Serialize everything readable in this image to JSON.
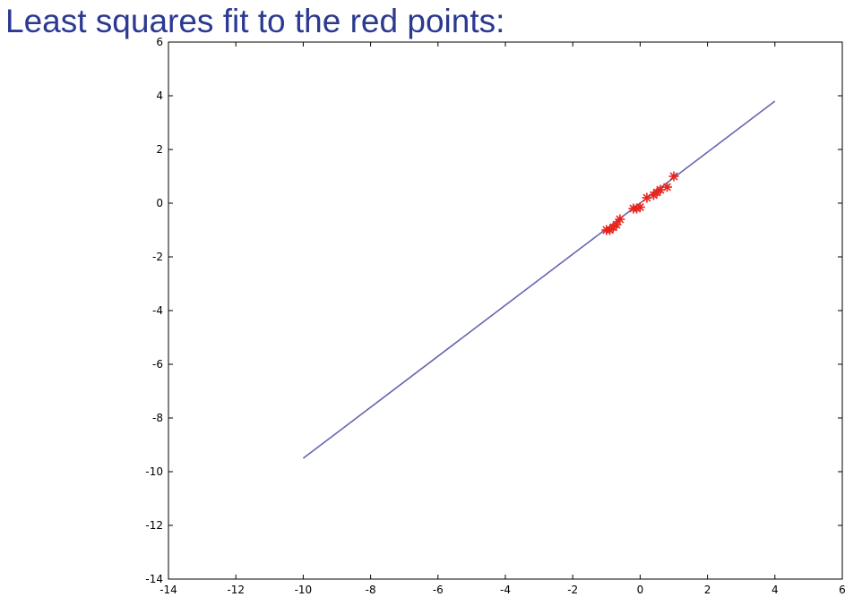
{
  "slide": {
    "title": "Least squares fit to the red points:"
  },
  "chart_data": {
    "type": "scatter",
    "title": "",
    "xlabel": "",
    "ylabel": "",
    "xlim": [
      -14,
      6
    ],
    "ylim": [
      -14,
      6
    ],
    "x_ticks": [
      -14,
      -12,
      -10,
      -8,
      -6,
      -4,
      -2,
      0,
      2,
      4,
      6
    ],
    "y_ticks": [
      6,
      4,
      2,
      0,
      -2,
      -4,
      -6,
      -8,
      -10,
      -12,
      -14
    ],
    "grid": false,
    "legend": "none",
    "colors": {
      "fit_line": "#6666b3",
      "points": "#e8231c",
      "axes": "#000000"
    },
    "series": [
      {
        "kind": "line",
        "x": [
          -10,
          4
        ],
        "y": [
          -9.5,
          3.8
        ]
      },
      {
        "kind": "points",
        "marker": "asterisk",
        "x": [
          -1.0,
          -0.9,
          -0.8,
          -0.7,
          -0.6,
          -0.2,
          -0.1,
          0.0,
          0.2,
          0.4,
          0.5,
          0.6,
          0.8,
          1.0
        ],
        "y": [
          -1.0,
          -1.0,
          -0.9,
          -0.8,
          -0.6,
          -0.2,
          -0.2,
          -0.15,
          0.2,
          0.3,
          0.4,
          0.5,
          0.6,
          1.0
        ]
      }
    ]
  }
}
